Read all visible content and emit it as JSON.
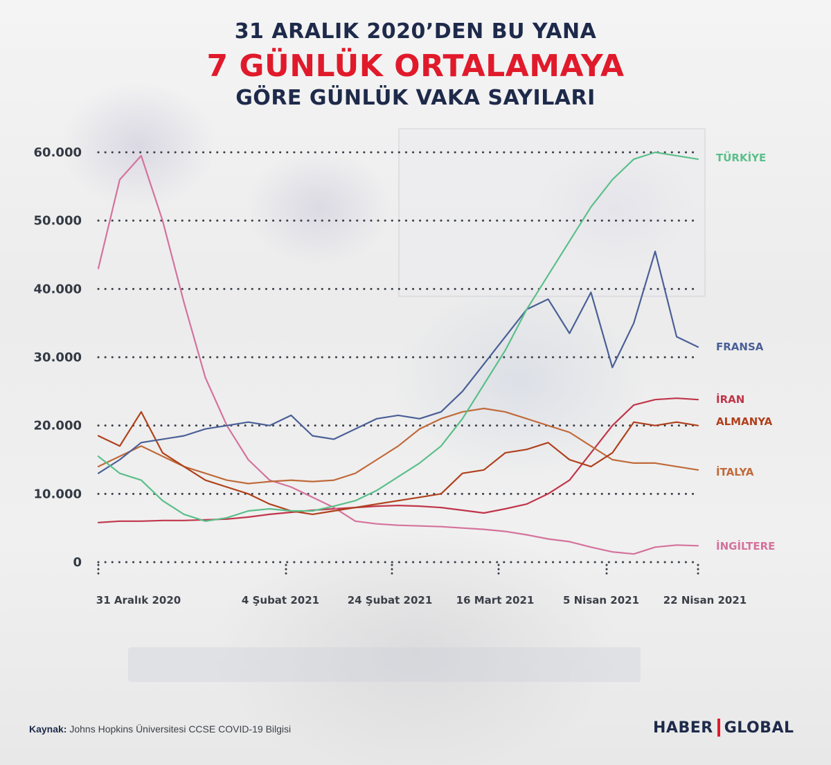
{
  "title": {
    "line1": "31 ARALIK 2020’DEN BU YANA",
    "line2": "7 GÜNLÜK ORTALAMAYA",
    "line3": "GÖRE GÜNLÜK VAKA SAYILARI"
  },
  "source": {
    "label": "Kaynak:",
    "text": "Johns Hopkins Üniversitesi CCSE COVID-19 Bilgisi"
  },
  "logo": {
    "left": "HABER",
    "right": "GLOBAL"
  },
  "colors": {
    "title": "#1e2a4a",
    "accent": "#e01a2b",
    "turkiye": "#5bbf8a",
    "fransa": "#4a5f96",
    "iran": "#c0354a",
    "almanya": "#b0401c",
    "italya": "#c06a3a",
    "ingiltere": "#d4729c"
  },
  "chart_data": {
    "type": "line",
    "ylim": [
      0,
      60000
    ],
    "yticks": [
      {
        "value": 60000,
        "label": "60.000"
      },
      {
        "value": 50000,
        "label": "50.000"
      },
      {
        "value": 40000,
        "label": "40.000"
      },
      {
        "value": 30000,
        "label": "30.000"
      },
      {
        "value": 20000,
        "label": "20.000"
      },
      {
        "value": 10000,
        "label": "10.000"
      },
      {
        "value": 0,
        "label": "0"
      }
    ],
    "xlabels": [
      "31 Aralık 2020",
      "4 Şubat 2021",
      "24 Şubat 2021",
      "16 Mart 2021",
      "5 Nisan 2021",
      "22 Nisan 2021"
    ],
    "x": [
      "2020-12-31",
      "2021-01-04",
      "2021-01-08",
      "2021-01-12",
      "2021-01-16",
      "2021-01-20",
      "2021-01-24",
      "2021-01-28",
      "2021-02-01",
      "2021-02-05",
      "2021-02-09",
      "2021-02-13",
      "2021-02-17",
      "2021-02-21",
      "2021-02-25",
      "2021-03-01",
      "2021-03-05",
      "2021-03-09",
      "2021-03-13",
      "2021-03-17",
      "2021-03-21",
      "2021-03-25",
      "2021-03-29",
      "2021-04-02",
      "2021-04-06",
      "2021-04-10",
      "2021-04-14",
      "2021-04-18",
      "2021-04-22"
    ],
    "series": [
      {
        "name": "TÜRKİYE",
        "color": "#5bbf8a",
        "values": [
          15500,
          13000,
          12000,
          9000,
          7000,
          6000,
          6500,
          7500,
          7800,
          7500,
          7500,
          8200,
          9000,
          10500,
          12500,
          14500,
          17000,
          21000,
          26000,
          31000,
          37000,
          42000,
          47000,
          52000,
          56000,
          59000,
          60000,
          59500,
          59000
        ]
      },
      {
        "name": "FRANSA",
        "color": "#4a5f96",
        "values": [
          13000,
          15000,
          17500,
          18000,
          18500,
          19500,
          20000,
          20500,
          20000,
          21500,
          18500,
          18000,
          19500,
          21000,
          21500,
          21000,
          22000,
          25000,
          29000,
          33000,
          37000,
          38500,
          33500,
          39500,
          28500,
          35000,
          45500,
          33000,
          31500
        ]
      },
      {
        "name": "İRAN",
        "color": "#c0354a",
        "values": [
          5800,
          6000,
          6000,
          6100,
          6100,
          6200,
          6300,
          6600,
          7000,
          7300,
          7600,
          7800,
          8000,
          8200,
          8300,
          8200,
          8000,
          7600,
          7200,
          7800,
          8500,
          10000,
          12000,
          16000,
          20000,
          23000,
          23800,
          24000,
          23800
        ]
      },
      {
        "name": "ALMANYA",
        "color": "#b0401c",
        "values": [
          18500,
          17000,
          22000,
          16000,
          14000,
          12000,
          11000,
          10000,
          8500,
          7500,
          7000,
          7500,
          8000,
          8500,
          9000,
          9500,
          10000,
          13000,
          13500,
          16000,
          16500,
          17500,
          15000,
          14000,
          16000,
          20500,
          20000,
          20500,
          20000
        ]
      },
      {
        "name": "İTALYA",
        "color": "#c06a3a",
        "values": [
          14000,
          15500,
          17000,
          15500,
          14000,
          13000,
          12000,
          11500,
          11800,
          12000,
          11800,
          12000,
          13000,
          15000,
          17000,
          19500,
          21000,
          22000,
          22500,
          22000,
          21000,
          20000,
          19000,
          17000,
          15000,
          14500,
          14500,
          14000,
          13500
        ]
      },
      {
        "name": "İNGİLTERE",
        "color": "#d4729c",
        "values": [
          43000,
          56000,
          59500,
          50000,
          38000,
          27000,
          20000,
          15000,
          12000,
          11000,
          9500,
          8000,
          6000,
          5600,
          5400,
          5300,
          5200,
          5000,
          4800,
          4500,
          4000,
          3400,
          3000,
          2200,
          1500,
          1200,
          2200,
          2500,
          2400
        ]
      }
    ]
  }
}
